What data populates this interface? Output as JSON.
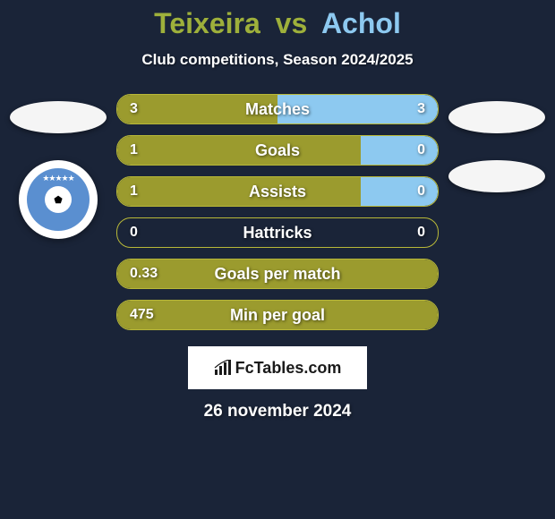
{
  "title": {
    "player_a": "Teixeira",
    "vs": "vs",
    "player_b": "Achol"
  },
  "subtitle": "Club competitions, Season 2024/2025",
  "colors": {
    "player_a": "#9b9b2e",
    "player_b": "#8dc9f0",
    "background": "#1a2438",
    "border_a": "#b8b838",
    "border_b": "#9ed4f5"
  },
  "stats": [
    {
      "label": "Matches",
      "value_a": "3",
      "value_b": "3",
      "bar_a_pct": 50,
      "bar_b_pct": 50,
      "fill_a": "#9b9b2e",
      "fill_b": "#8dc9f0",
      "border": "#b8b838"
    },
    {
      "label": "Goals",
      "value_a": "1",
      "value_b": "0",
      "bar_a_pct": 76,
      "bar_b_pct": 24,
      "fill_a": "#9b9b2e",
      "fill_b": "#8dc9f0",
      "border": "#b8b838"
    },
    {
      "label": "Assists",
      "value_a": "1",
      "value_b": "0",
      "bar_a_pct": 76,
      "bar_b_pct": 24,
      "fill_a": "#9b9b2e",
      "fill_b": "#8dc9f0",
      "border": "#b8b838"
    },
    {
      "label": "Hattricks",
      "value_a": "0",
      "value_b": "0",
      "bar_a_pct": 0,
      "bar_b_pct": 0,
      "fill_a": "#9b9b2e",
      "fill_b": "#8dc9f0",
      "border": "#b8b838"
    },
    {
      "label": "Goals per match",
      "value_a": "0.33",
      "value_b": "",
      "bar_a_pct": 100,
      "bar_b_pct": 0,
      "fill_a": "#9b9b2e",
      "fill_b": "#8dc9f0",
      "border": "#b8b838"
    },
    {
      "label": "Min per goal",
      "value_a": "475",
      "value_b": "",
      "bar_a_pct": 100,
      "bar_b_pct": 0,
      "fill_a": "#9b9b2e",
      "fill_b": "#8dc9f0",
      "border": "#b8b838"
    }
  ],
  "branding": "FcTables.com",
  "date": "26 november 2024",
  "club_logo": {
    "bg": "#5a8fd0"
  }
}
